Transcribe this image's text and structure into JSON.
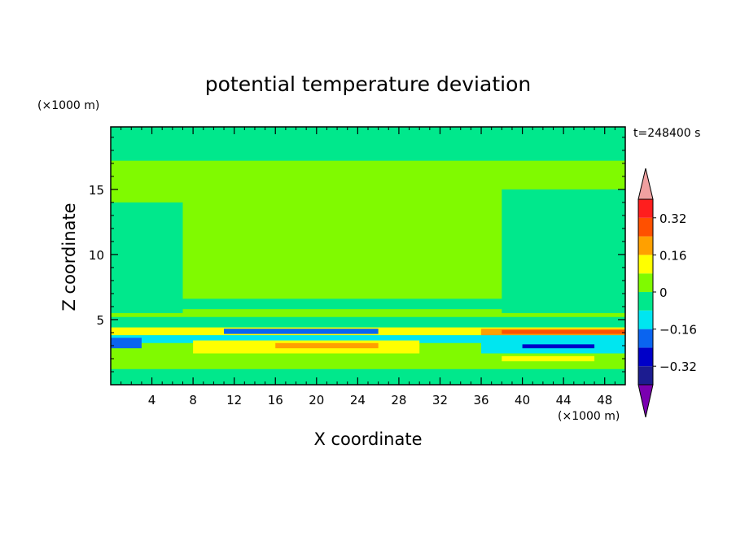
{
  "chart_data": {
    "type": "heatmap",
    "title": "potential temperature deviation",
    "xlabel": "X coordinate",
    "ylabel": "Z coordinate",
    "x_unit": "(×1000 m)",
    "y_unit": "(×1000 m)",
    "time_label": "t=248400 s",
    "xlim": [
      0,
      50
    ],
    "ylim": [
      0,
      19.8
    ],
    "x_ticks": [
      4,
      8,
      12,
      16,
      20,
      24,
      28,
      32,
      36,
      40,
      44,
      48
    ],
    "y_ticks": [
      5,
      10,
      15
    ],
    "colorbar": {
      "levels": [
        -0.4,
        -0.32,
        -0.24,
        -0.16,
        -0.08,
        0,
        0.08,
        0.16,
        0.24,
        0.32,
        0.4
      ],
      "labels": [
        "0.32",
        "0.16",
        "0",
        "−0.16",
        "−0.32"
      ],
      "label_values": [
        0.32,
        0.16,
        0,
        -0.16,
        -0.32
      ],
      "colors": [
        "#7a00b0",
        "#1c1c90",
        "#0000c8",
        "#0a64f0",
        "#00e6f0",
        "#00e88c",
        "#80fa00",
        "#ffff00",
        "#ffa000",
        "#ff5000",
        "#ff1e1e",
        "#f0a0a0"
      ]
    },
    "bands": [
      {
        "x": [
          0,
          50
        ],
        "z": [
          0,
          19.8
        ],
        "value": 0.04
      },
      {
        "x": [
          0,
          50
        ],
        "z": [
          17.2,
          19.8
        ],
        "value": -0.04
      },
      {
        "x": [
          0,
          7
        ],
        "z": [
          5.5,
          14
        ],
        "value": -0.04
      },
      {
        "x": [
          38,
          50
        ],
        "z": [
          5.5,
          15
        ],
        "value": -0.04
      },
      {
        "x": [
          0,
          50
        ],
        "z": [
          5.8,
          6.6
        ],
        "value": -0.04
      },
      {
        "x": [
          0,
          50
        ],
        "z": [
          4.2,
          5.2
        ],
        "value": -0.04
      },
      {
        "x": [
          0,
          50
        ],
        "z": [
          3.8,
          4.4
        ],
        "value": 0.14
      },
      {
        "x": [
          11,
          26
        ],
        "z": [
          3.9,
          4.3
        ],
        "value": -0.18
      },
      {
        "x": [
          36,
          50
        ],
        "z": [
          3.7,
          4.3
        ],
        "value": 0.2
      },
      {
        "x": [
          38,
          50
        ],
        "z": [
          3.9,
          4.2
        ],
        "value": 0.26
      },
      {
        "x": [
          0,
          50
        ],
        "z": [
          3.2,
          3.8
        ],
        "value": -0.1
      },
      {
        "x": [
          8,
          30
        ],
        "z": [
          2.4,
          3.4
        ],
        "value": 0.12
      },
      {
        "x": [
          16,
          26
        ],
        "z": [
          2.8,
          3.2
        ],
        "value": 0.2
      },
      {
        "x": [
          36,
          50
        ],
        "z": [
          2.4,
          3.4
        ],
        "value": -0.14
      },
      {
        "x": [
          40,
          47
        ],
        "z": [
          2.8,
          3.1
        ],
        "value": -0.3
      },
      {
        "x": [
          0,
          3
        ],
        "z": [
          2.8,
          3.6
        ],
        "value": -0.2
      },
      {
        "x": [
          0,
          50
        ],
        "z": [
          1.6,
          2.4
        ],
        "value": 0.04
      },
      {
        "x": [
          38,
          47
        ],
        "z": [
          1.8,
          2.2
        ],
        "value": 0.12
      },
      {
        "x": [
          0,
          50
        ],
        "z": [
          0,
          1.2
        ],
        "value": -0.04
      }
    ]
  }
}
